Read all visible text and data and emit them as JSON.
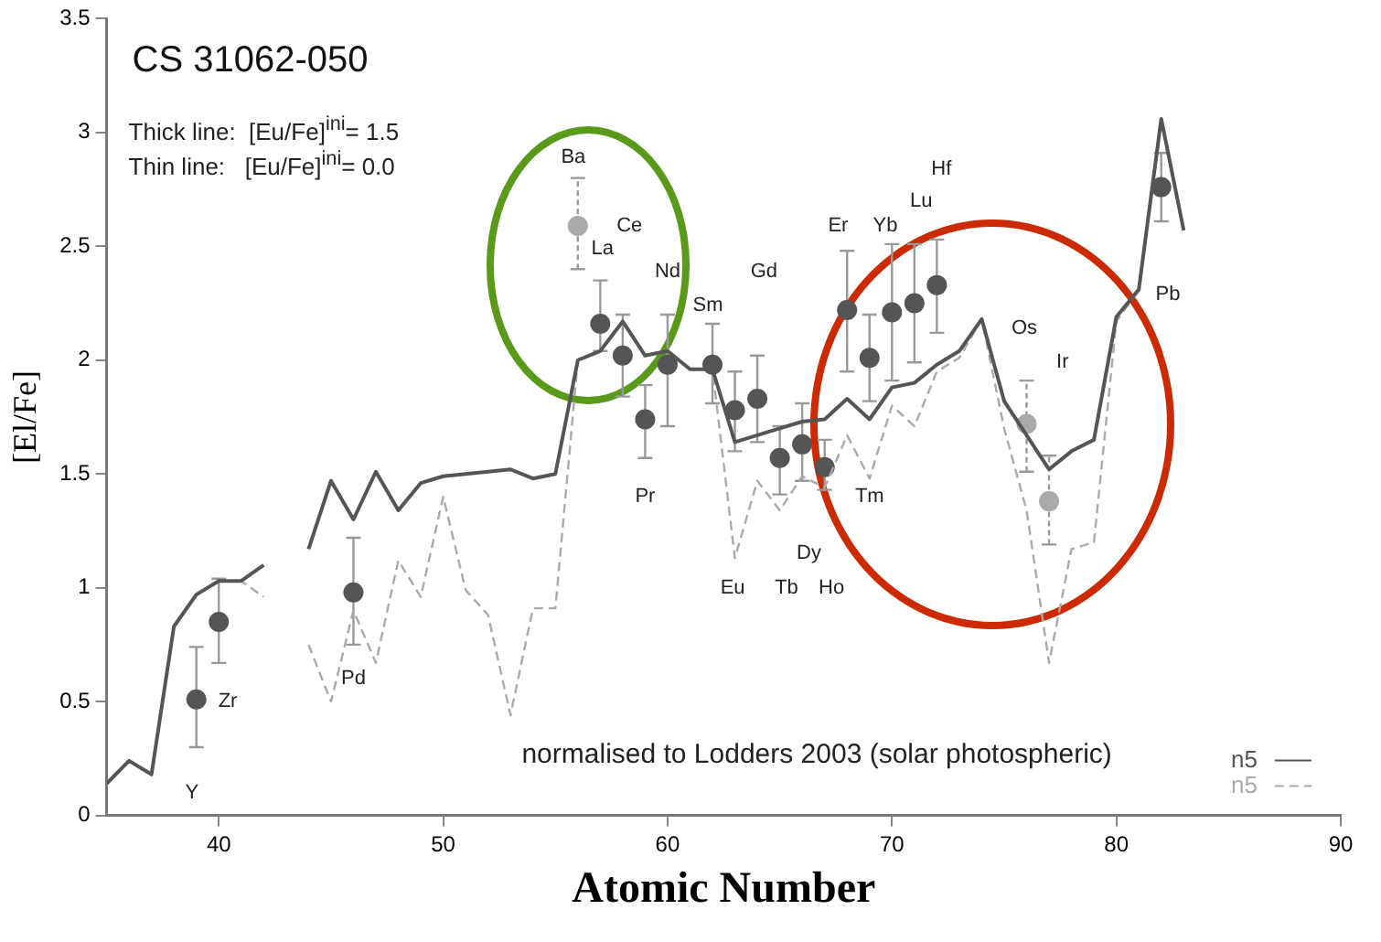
{
  "chart_data": {
    "type": "scatter",
    "title": "CS 31062-050",
    "xlabel": "Atomic Number",
    "ylabel": "[El/Fe]",
    "annotations": [
      "Thick line:  [Eu/Fe]$^{ini}$= 1.5",
      "Thin line:   [Eu/Fe]$^{ini}$= 0.0",
      "normalised to Lodders 2003 (solar photospheric)",
      "Y",
      "Zr",
      "Pd",
      "Ba",
      "Ce",
      "La",
      "Nd",
      "Gd",
      "Sm",
      "Pr",
      "Eu",
      "Tb",
      "Ho",
      "Dy",
      "Tm",
      "Er",
      "Yb",
      "Lu",
      "Hf",
      "Os",
      "Ir",
      "Pb"
    ],
    "xlim": [
      35,
      90
    ],
    "xticks": [
      40,
      50,
      60,
      70,
      80,
      90
    ],
    "ylim": [
      0,
      3.5
    ],
    "yticks": [
      0,
      0.5,
      1,
      1.5,
      2,
      2.5,
      3,
      3.5
    ],
    "grid": false,
    "legend": "bottom right",
    "series": [
      {
        "type": "line",
        "name": "n5",
        "color": "#555555",
        "line_style": "solid",
        "marker": "none",
        "x": [
          35,
          36,
          37,
          38,
          39,
          40,
          41,
          42,
          43,
          44,
          45,
          46,
          47,
          48,
          49,
          50,
          51,
          52,
          53,
          54,
          55,
          56,
          57,
          58,
          59,
          60,
          61,
          62,
          63,
          64,
          65,
          66,
          67,
          68,
          69,
          70,
          71,
          72,
          73,
          74,
          75,
          76,
          77,
          78,
          79,
          80,
          81,
          82,
          83
        ],
        "values": [
          0.14,
          0.24,
          0.18,
          0.83,
          0.97,
          1.03,
          1.03,
          1.1,
          null,
          1.17,
          1.47,
          1.3,
          1.51,
          1.34,
          1.46,
          1.49,
          1.5,
          1.51,
          1.52,
          1.48,
          1.5,
          2.0,
          2.04,
          2.17,
          2.02,
          2.04,
          1.96,
          1.96,
          1.64,
          1.67,
          1.7,
          1.73,
          1.74,
          1.83,
          1.74,
          1.88,
          1.9,
          1.98,
          2.04,
          2.18,
          1.82,
          1.67,
          1.52,
          1.6,
          1.65,
          2.19,
          2.31,
          3.06,
          2.57
        ]
      },
      {
        "type": "line",
        "name": "n5",
        "color": "#aaaaaa",
        "line_style": "dashed",
        "marker": "none",
        "x": [
          35,
          36,
          37,
          38,
          39,
          40,
          41,
          42,
          43,
          44,
          45,
          46,
          47,
          48,
          49,
          50,
          51,
          52,
          53,
          54,
          55,
          56,
          57,
          58,
          59,
          60,
          61,
          62,
          63,
          64,
          65,
          66,
          67,
          68,
          69,
          70,
          71,
          72,
          73,
          74,
          75,
          76,
          77,
          78,
          79,
          80,
          81,
          82,
          83
        ],
        "values": [
          0.14,
          0.24,
          0.18,
          0.83,
          0.97,
          1.03,
          1.03,
          0.96,
          null,
          0.75,
          0.5,
          0.9,
          0.67,
          1.12,
          0.96,
          1.4,
          0.99,
          0.88,
          0.44,
          0.91,
          0.91,
          2.0,
          2.04,
          2.17,
          2.02,
          2.04,
          1.96,
          1.96,
          1.13,
          1.47,
          1.34,
          1.49,
          1.44,
          1.67,
          1.48,
          1.8,
          1.71,
          1.95,
          2.01,
          2.18,
          1.7,
          1.34,
          0.67,
          1.17,
          1.2,
          2.17,
          2.31,
          3.06,
          2.57
        ]
      },
      {
        "marker": "circle",
        "x": [
          39,
          40,
          46,
          56,
          57,
          58,
          59,
          60,
          62,
          63,
          64,
          65,
          66,
          67,
          68,
          69,
          70,
          71,
          72,
          76,
          77,
          82
        ],
        "values": [
          0.51,
          0.85,
          0.98,
          2.59,
          2.16,
          2.02,
          1.74,
          1.98,
          1.98,
          1.78,
          1.83,
          1.57,
          1.63,
          1.53,
          2.22,
          2.01,
          2.21,
          2.25,
          2.33,
          1.72,
          1.38,
          2.76
        ],
        "errors": [
          [
            0.3,
            0.74
          ],
          [
            0.67,
            1.04
          ],
          [
            0.75,
            1.22
          ],
          [
            2.4,
            2.8
          ],
          [
            2.04,
            2.35
          ],
          [
            1.84,
            2.2
          ],
          [
            1.57,
            1.89
          ],
          [
            1.71,
            2.2
          ],
          [
            1.81,
            2.16
          ],
          [
            1.6,
            1.95
          ],
          [
            1.64,
            2.02
          ],
          [
            1.41,
            1.71
          ],
          [
            1.47,
            1.81
          ],
          [
            1.43,
            1.65
          ],
          [
            1.95,
            2.48
          ],
          [
            1.82,
            2.2
          ],
          [
            1.91,
            2.51
          ],
          [
            1.99,
            2.51
          ],
          [
            2.12,
            2.53
          ],
          [
            1.51,
            1.91
          ],
          [
            1.19,
            1.58
          ],
          [
            2.61,
            2.91
          ]
        ],
        "colors": [
          "#555555",
          "#555555",
          "#555555",
          "#aaaaaa",
          "#555555",
          "#555555",
          "#555555",
          "#555555",
          "#555555",
          "#555555",
          "#555555",
          "#555555",
          "#555555",
          "#555555",
          "#555555",
          "#555555",
          "#555555",
          "#555555",
          "#555555",
          "#aaaaaa",
          "#aaaaaa",
          "#555555"
        ]
      }
    ]
  }
}
